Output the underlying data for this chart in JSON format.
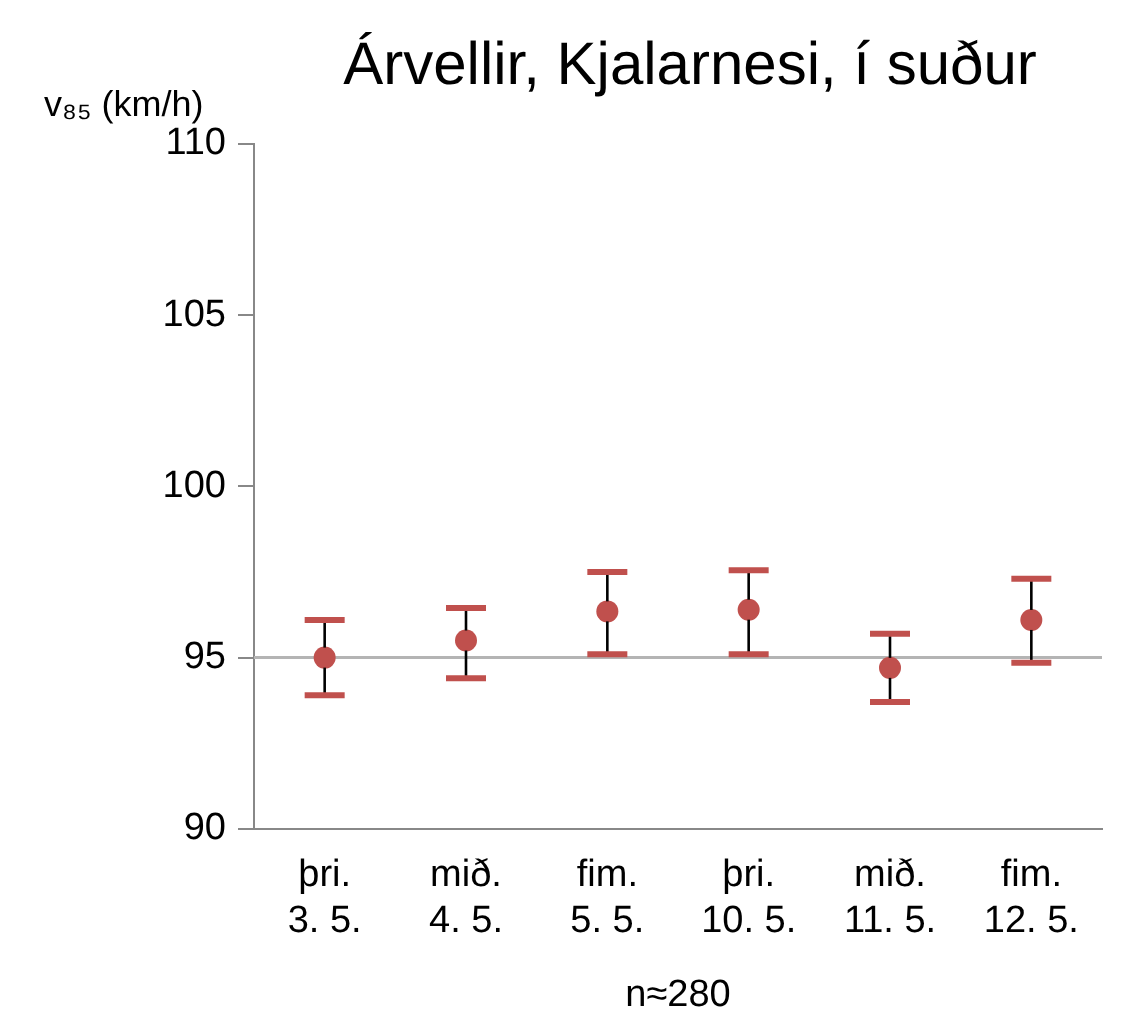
{
  "chart_data": {
    "type": "scatter",
    "title": "Árvellir, Kjalarnesi, í suður",
    "ylabel": "v₈₅ (km/h)",
    "xlabel": "n≈280",
    "categories": [
      "þri.\n3. 5.",
      "mið.\n4. 5.",
      "fim.\n5. 5.",
      "þri.\n10. 5.",
      "mið.\n11. 5.",
      "fim.\n12. 5."
    ],
    "values": [
      95.0,
      95.5,
      96.35,
      96.4,
      94.7,
      96.1
    ],
    "errors": [
      [
        93.9,
        96.1
      ],
      [
        94.4,
        96.45
      ],
      [
        95.1,
        97.5
      ],
      [
        95.1,
        97.55
      ],
      [
        93.7,
        95.7
      ],
      [
        94.85,
        97.3
      ]
    ],
    "color": "#c0504d",
    "marker": "circle",
    "ylim": [
      90,
      110
    ],
    "yticks": [
      90,
      95,
      100,
      105,
      110
    ],
    "grid": false,
    "legend": false,
    "ref_lines": [
      {
        "axis": "y",
        "value": 95,
        "color": "#b4b4b4"
      }
    ]
  }
}
